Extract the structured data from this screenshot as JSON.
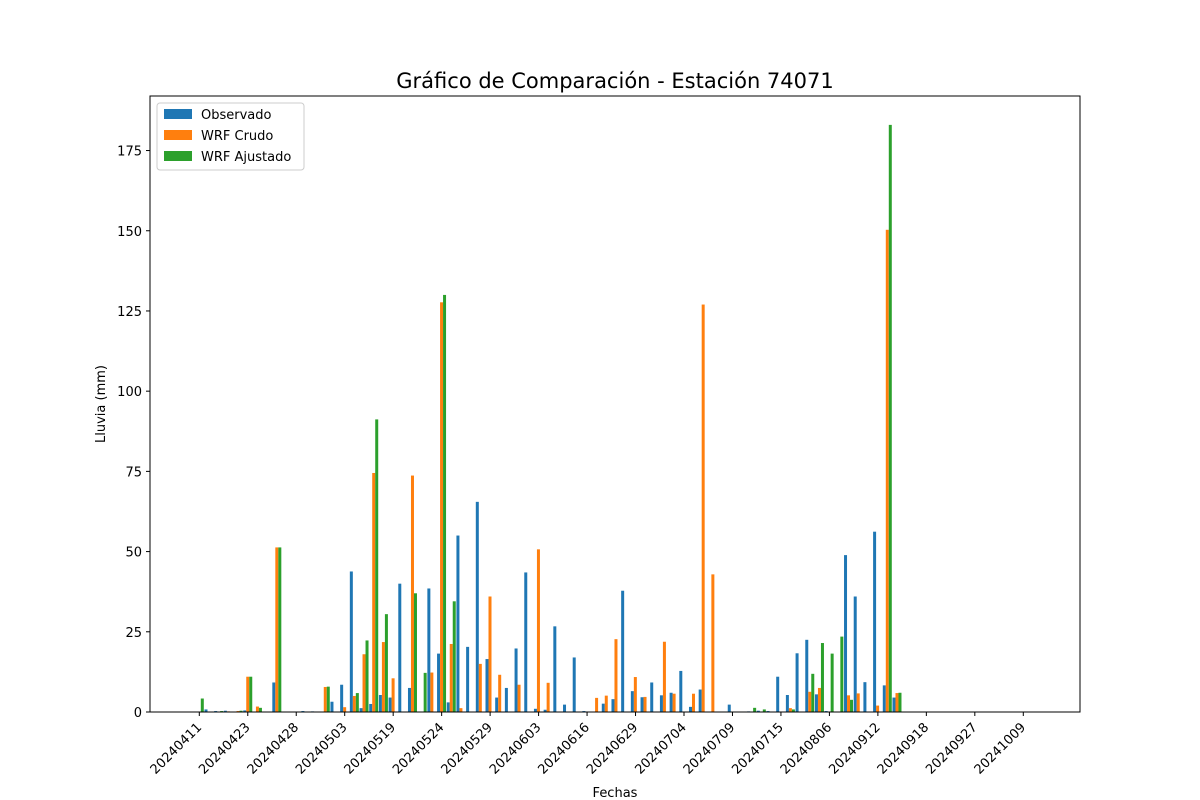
{
  "chart_data": {
    "type": "bar",
    "title": "Gráfico de Comparación - Estación 74071",
    "xlabel": "Fechas",
    "ylabel": "Lluvia (mm)",
    "ylim": [
      0,
      192
    ],
    "yticks": [
      0,
      25,
      50,
      75,
      100,
      125,
      150,
      175
    ],
    "xtick_labels": [
      "20240411",
      "20240423",
      "20240428",
      "20240503",
      "20240519",
      "20240524",
      "20240529",
      "20240603",
      "20240616",
      "20240629",
      "20240704",
      "20240709",
      "20240715",
      "20240806",
      "20240912",
      "20240918",
      "20240927",
      "20241009"
    ],
    "legend_position": "upper-left",
    "grid": false,
    "series": [
      {
        "name": "Observado",
        "color": "#1f77b4",
        "values": [
          0,
          0.8,
          0.3,
          0.4,
          0.1,
          0.5,
          0,
          0,
          9.2,
          0,
          0,
          0.3,
          0.2,
          0,
          3.2,
          8.5,
          43.8,
          1.2,
          2.5,
          5.3,
          4.5,
          40,
          7.5,
          0,
          38.5,
          18.2,
          3,
          55,
          20.3,
          65.5,
          16.5,
          4.5,
          7.5,
          19.8,
          43.5,
          1,
          0.7,
          26.7,
          2.3,
          17,
          0.3,
          0.1,
          2.6,
          4,
          37.8,
          6.5,
          4.6,
          9.2,
          5.2,
          6,
          12.8,
          1.6,
          7,
          0,
          0,
          2.3,
          0,
          0.2,
          0.4,
          0.3,
          11,
          5.3,
          18.3,
          22.5,
          5.5,
          0.3,
          0,
          48.9,
          36,
          9.3,
          56.2,
          8.3,
          4.5
        ]
      },
      {
        "name": "WRF Crudo",
        "color": "#ff7f0e",
        "values": [
          0,
          0,
          0,
          0.2,
          0.3,
          11,
          1.7,
          0,
          51.3,
          0,
          0,
          0,
          0,
          7.8,
          0,
          1.5,
          5,
          18,
          74.5,
          21.8,
          10.5,
          0,
          73.7,
          0,
          12.3,
          127.7,
          21.2,
          1.2,
          0,
          15,
          36,
          11.6,
          0,
          8.5,
          0,
          50.7,
          9.1,
          0,
          0,
          0,
          0,
          4.4,
          5.1,
          22.7,
          0,
          10.9,
          4.7,
          0,
          21.9,
          5.7,
          0,
          5.7,
          127,
          42.9,
          0,
          0,
          0,
          0,
          0,
          0,
          0,
          1.2,
          0,
          6.3,
          7.5,
          0,
          0,
          5.2,
          5.8,
          0,
          2,
          150.3,
          5.9
        ]
      },
      {
        "name": "WRF Ajustado",
        "color": "#2ca02c",
        "values": [
          4.2,
          0,
          0.3,
          0,
          0.4,
          11,
          1.3,
          0,
          51.3,
          0,
          0,
          0,
          0,
          7.9,
          0,
          0,
          5.9,
          22.3,
          91.2,
          30.5,
          0,
          0,
          37,
          12.2,
          0,
          130,
          34.5,
          0,
          0,
          0,
          0,
          0,
          0,
          0,
          0,
          0,
          0,
          0,
          0,
          0,
          0,
          0,
          0,
          0,
          0,
          0,
          0,
          0,
          0,
          0,
          0,
          0,
          0,
          0,
          0,
          0,
          0,
          1.3,
          0.8,
          0,
          0,
          0.8,
          0,
          11.9,
          21.5,
          18.2,
          23.5,
          3.8,
          0,
          0,
          0,
          183,
          6
        ]
      }
    ]
  }
}
